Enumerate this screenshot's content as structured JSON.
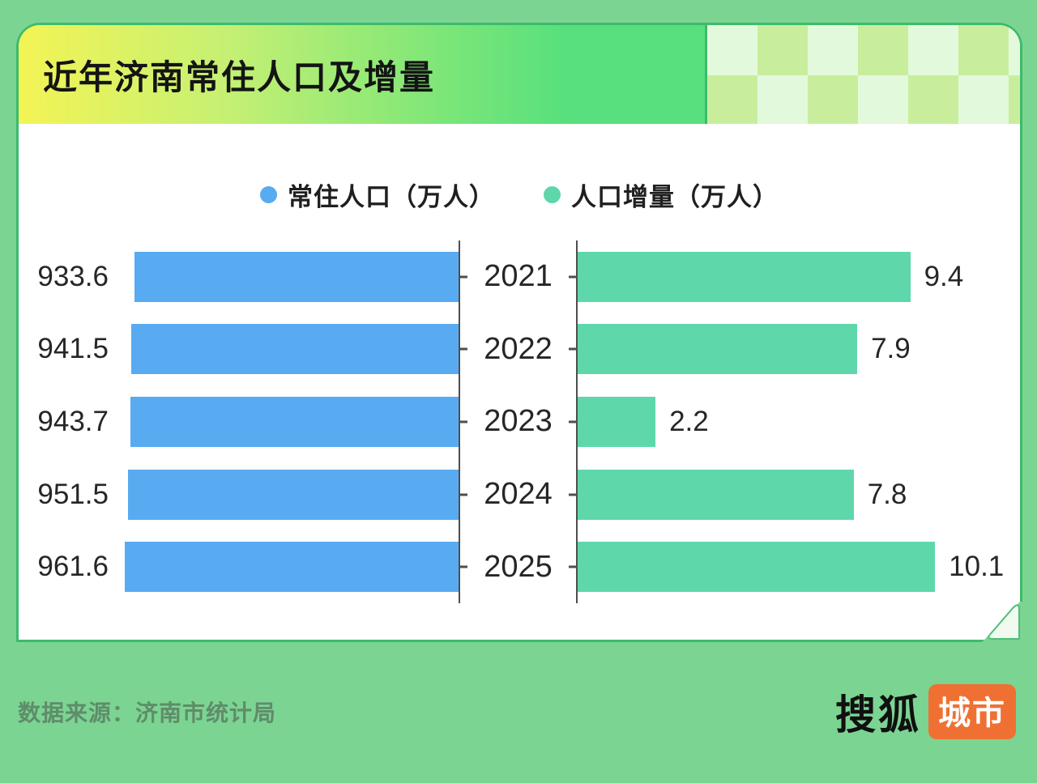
{
  "header": {
    "title": "近年济南常住人口及增量"
  },
  "legend": [
    {
      "label": "常住人口（万人）",
      "color": "#58ABF0"
    },
    {
      "label": "人口增量（万人）",
      "color": "#5ED7AB"
    }
  ],
  "chart_data": {
    "type": "bar",
    "layout": "mirrored-horizontal",
    "title": "近年济南常住人口及增量",
    "categories": [
      "2021",
      "2022",
      "2023",
      "2024",
      "2025"
    ],
    "series": [
      {
        "name": "常住人口（万人）",
        "side": "left",
        "color": "#58ABF0",
        "values": [
          933.6,
          941.5,
          943.7,
          951.5,
          961.6
        ],
        "scale_max": 970
      },
      {
        "name": "人口增量（万人）",
        "side": "right",
        "color": "#5ED7AB",
        "values": [
          9.4,
          7.9,
          2.2,
          7.8,
          10.1
        ],
        "scale_max": 12.5
      }
    ],
    "grid": false,
    "legend_position": "top-center",
    "colors": {
      "background": "#7CD492",
      "card_border": "#3CBB6C",
      "header_gradient_start": "#F3F455",
      "header_gradient_end": "#57E07D",
      "checker_light": "#E3F9DB",
      "checker_dark": "#C8EE9D",
      "axis": "#4E4E4E"
    }
  },
  "footer": {
    "source": "数据来源：济南市统计局",
    "logo": {
      "part1": "搜狐",
      "part2": "城市",
      "badge_color": "#F07033"
    }
  }
}
